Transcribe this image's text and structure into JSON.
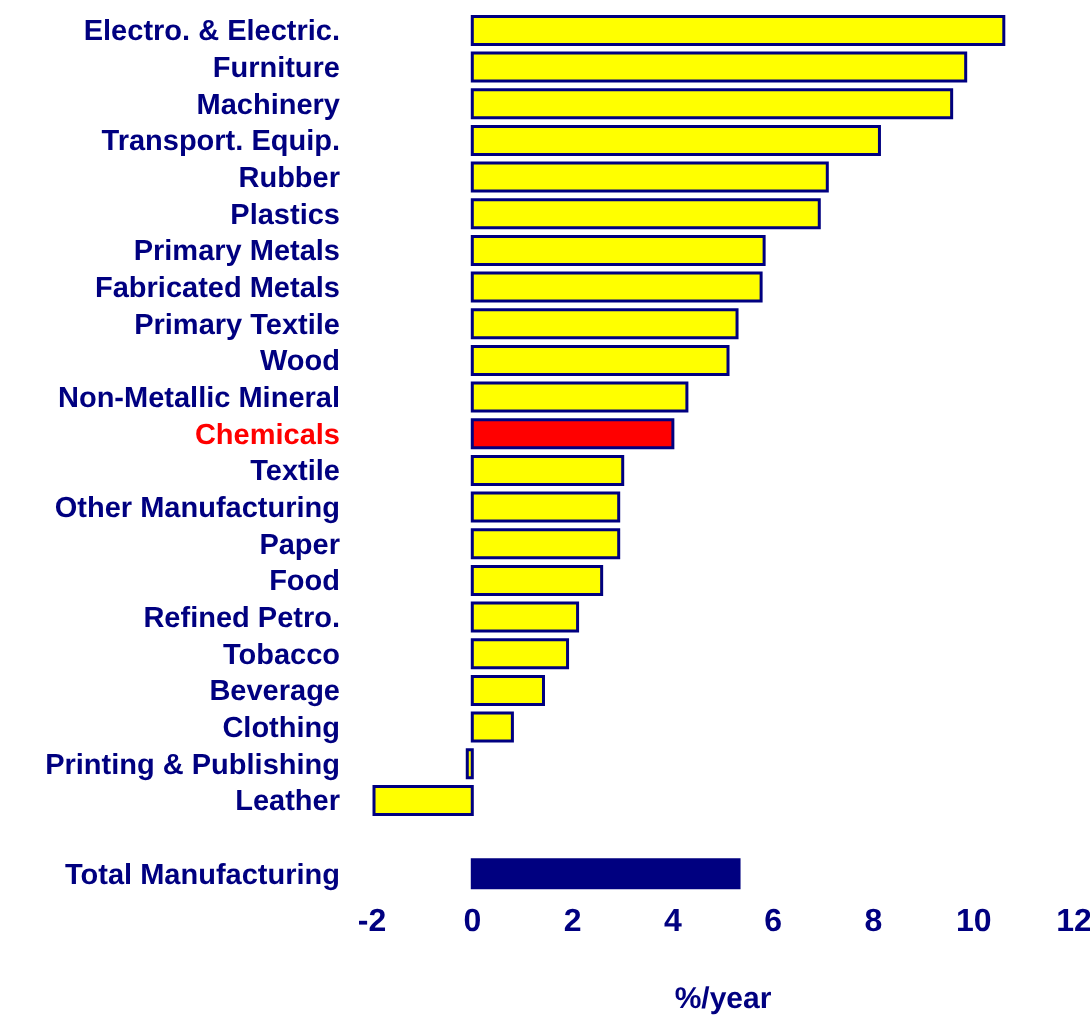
{
  "chart_data": {
    "type": "bar",
    "orientation": "horizontal",
    "xlabel": "%/year",
    "categories": [
      "Electro. & Electric.",
      "Furniture",
      "Machinery",
      "Transport. Equip.",
      "Rubber",
      "Plastics",
      "Primary Metals",
      "Fabricated Metals",
      "Primary Textile",
      "Wood",
      "Non-Metallic Mineral",
      "Chemicals",
      "Textile",
      "Other Manufacturing",
      "Paper",
      "Food",
      "Refined Petro.",
      "Tobacco",
      "Beverage",
      "Clothing",
      "Printing & Publishing",
      "Leather",
      null,
      "Total Manufacturing"
    ],
    "values": [
      10.6,
      9.84,
      9.56,
      8.12,
      7.08,
      6.92,
      5.82,
      5.76,
      5.28,
      5.1,
      4.28,
      4.0,
      3.0,
      2.92,
      2.92,
      2.58,
      2.1,
      1.9,
      1.42,
      0.8,
      -0.1,
      -1.96,
      null,
      5.32
    ],
    "colors": [
      "#ffff00",
      "#ffff00",
      "#ffff00",
      "#ffff00",
      "#ffff00",
      "#ffff00",
      "#ffff00",
      "#ffff00",
      "#ffff00",
      "#ffff00",
      "#ffff00",
      "#ff0000",
      "#ffff00",
      "#ffff00",
      "#ffff00",
      "#ffff00",
      "#ffff00",
      "#ffff00",
      "#ffff00",
      "#ffff00",
      "#ffff00",
      "#ffff00",
      null,
      "#000080"
    ],
    "xlim": [
      -2,
      12
    ],
    "xticks": [
      -2,
      0,
      2,
      4,
      6,
      8,
      10,
      12
    ],
    "grid": false,
    "legend": false
  }
}
